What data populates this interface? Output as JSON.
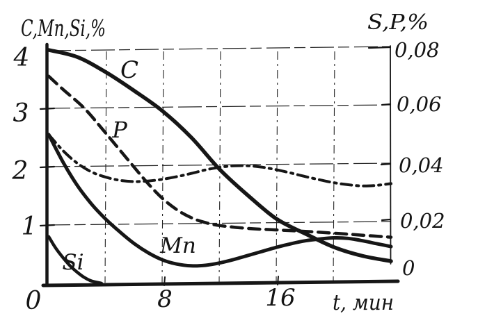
{
  "figure": {
    "background": "#ffffff",
    "ink_color": "#161616"
  },
  "chart_data": {
    "type": "line",
    "title": "",
    "grid": true,
    "x": {
      "label": "t, мин",
      "ticks": [
        "0",
        "8",
        "16"
      ],
      "range": [
        0,
        24
      ],
      "grid_step_min": 4
    },
    "y_left": {
      "label": "C,Mn,Si,%",
      "ticks": [
        "4",
        "3",
        "2",
        "1"
      ],
      "range": [
        0,
        4
      ]
    },
    "y_right": {
      "label": "S,P,%",
      "ticks": [
        "0,08",
        "0,06",
        "0,04",
        "0,02",
        "0"
      ],
      "range": [
        0,
        0.08
      ]
    },
    "series": [
      {
        "name": "C",
        "label": "C",
        "axis": "left",
        "style": "solid",
        "points": [
          [
            0,
            4.0
          ],
          [
            2,
            3.88
          ],
          [
            4,
            3.62
          ],
          [
            6,
            3.3
          ],
          [
            8,
            2.95
          ],
          [
            10,
            2.5
          ],
          [
            12,
            1.95
          ],
          [
            14,
            1.5
          ],
          [
            16,
            1.1
          ],
          [
            18,
            0.85
          ],
          [
            20,
            0.62
          ],
          [
            22,
            0.47
          ],
          [
            24,
            0.38
          ]
        ]
      },
      {
        "name": "P",
        "label": "P",
        "axis": "right",
        "style": "dashed",
        "points": [
          [
            0,
            0.071
          ],
          [
            1,
            0.0665
          ],
          [
            2.5,
            0.06
          ],
          [
            4,
            0.0515
          ],
          [
            5.7,
            0.0415
          ],
          [
            7,
            0.034
          ],
          [
            8,
            0.029
          ],
          [
            9,
            0.0252
          ],
          [
            10,
            0.0225
          ],
          [
            11,
            0.0208
          ],
          [
            12,
            0.0198
          ],
          [
            14,
            0.0188
          ],
          [
            16,
            0.0183
          ],
          [
            18,
            0.0178
          ],
          [
            20,
            0.0172
          ],
          [
            22,
            0.0165
          ],
          [
            24,
            0.0158
          ]
        ]
      },
      {
        "name": "Mn",
        "label": "Mn",
        "axis": "left",
        "style": "solid",
        "points": [
          [
            0,
            2.55
          ],
          [
            1,
            2.08
          ],
          [
            2,
            1.68
          ],
          [
            3,
            1.36
          ],
          [
            4,
            1.1
          ],
          [
            5,
            0.88
          ],
          [
            6,
            0.68
          ],
          [
            7,
            0.52
          ],
          [
            8,
            0.4
          ],
          [
            9,
            0.33
          ],
          [
            10,
            0.3
          ],
          [
            11,
            0.31
          ],
          [
            12,
            0.35
          ],
          [
            13,
            0.41
          ],
          [
            14,
            0.48
          ],
          [
            15,
            0.55
          ],
          [
            16,
            0.62
          ],
          [
            17,
            0.68
          ],
          [
            18,
            0.73
          ],
          [
            19,
            0.76
          ],
          [
            20,
            0.78
          ],
          [
            21,
            0.77
          ],
          [
            22,
            0.73
          ],
          [
            23,
            0.68
          ],
          [
            24,
            0.63
          ]
        ]
      },
      {
        "name": "Si",
        "label": "Si",
        "axis": "left",
        "style": "solid",
        "points": [
          [
            0,
            0.8
          ],
          [
            0.5,
            0.6
          ],
          [
            1,
            0.44
          ],
          [
            1.5,
            0.3
          ],
          [
            2,
            0.19
          ],
          [
            2.5,
            0.1
          ],
          [
            3,
            0.04
          ],
          [
            3.7,
            0.0
          ]
        ]
      },
      {
        "name": "S",
        "label": "",
        "axis": "right",
        "style": "dashdot",
        "points": [
          [
            0,
            0.051
          ],
          [
            1,
            0.0455
          ],
          [
            2,
            0.0412
          ],
          [
            3,
            0.0382
          ],
          [
            4,
            0.0364
          ],
          [
            5,
            0.0353
          ],
          [
            6,
            0.0349
          ],
          [
            7,
            0.0351
          ],
          [
            8,
            0.0357
          ],
          [
            9,
            0.0366
          ],
          [
            10,
            0.0377
          ],
          [
            11,
            0.0389
          ],
          [
            12,
            0.0398
          ],
          [
            13,
            0.0403
          ],
          [
            14,
            0.0403
          ],
          [
            15,
            0.0398
          ],
          [
            16,
            0.0389
          ],
          [
            17,
            0.0378
          ],
          [
            18,
            0.0366
          ],
          [
            19,
            0.0355
          ],
          [
            20,
            0.0345
          ],
          [
            21,
            0.0338
          ],
          [
            22,
            0.0334
          ],
          [
            23,
            0.0336
          ],
          [
            24,
            0.0342
          ]
        ]
      }
    ]
  }
}
